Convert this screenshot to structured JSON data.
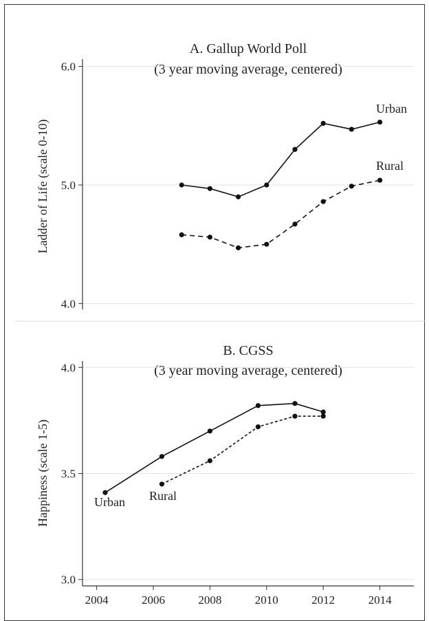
{
  "chart_data": [
    {
      "type": "line",
      "title": "A. Gallup World Poll",
      "subtitle": "(3 year moving average, centered)",
      "ylabel": "Ladder of Life (scale 0-10)",
      "xlabel": "",
      "xlim": [
        2003.5,
        2015.2
      ],
      "ylim": [
        3.95,
        6.05
      ],
      "yticks": [
        4.0,
        5.0,
        6.0
      ],
      "ytick_labels": [
        "4.0",
        "5.0",
        "6.0"
      ],
      "grid": true,
      "series": [
        {
          "name": "Urban",
          "style": "solid",
          "x": [
            2007,
            2008,
            2009,
            2010,
            2011,
            2012,
            2013,
            2014
          ],
          "y": [
            5.0,
            4.97,
            4.9,
            5.0,
            5.3,
            5.52,
            5.47,
            5.53
          ]
        },
        {
          "name": "Rural",
          "style": "dashed",
          "x": [
            2007,
            2008,
            2009,
            2010,
            2011,
            2012,
            2013,
            2014
          ],
          "y": [
            4.58,
            4.56,
            4.47,
            4.5,
            4.67,
            4.86,
            4.99,
            5.04
          ]
        }
      ]
    },
    {
      "type": "line",
      "title": "B. CGSS",
      "subtitle": "(3 year moving average, centered)",
      "ylabel": "Happiness (scale 1-5)",
      "xlabel": "",
      "xlim": [
        2003.5,
        2015.2
      ],
      "ylim": [
        2.97,
        4.03
      ],
      "xticks": [
        2004,
        2006,
        2008,
        2010,
        2012,
        2014
      ],
      "xtick_labels": [
        "2004",
        "2006",
        "2008",
        "2010",
        "2012",
        "2014"
      ],
      "yticks": [
        3.0,
        3.5,
        4.0
      ],
      "ytick_labels": [
        "3.0",
        "3.5",
        "4.0"
      ],
      "grid": true,
      "series": [
        {
          "name": "Urban",
          "style": "solid",
          "x": [
            2004.3,
            2006.3,
            2008.0,
            2009.7,
            2011.0,
            2012.0
          ],
          "y": [
            3.41,
            3.58,
            3.7,
            3.82,
            3.83,
            3.79
          ]
        },
        {
          "name": "Rural",
          "style": "dotted",
          "x": [
            2006.3,
            2008.0,
            2009.7,
            2011.0,
            2012.0
          ],
          "y": [
            3.45,
            3.56,
            3.72,
            3.77,
            3.77
          ]
        }
      ]
    }
  ]
}
